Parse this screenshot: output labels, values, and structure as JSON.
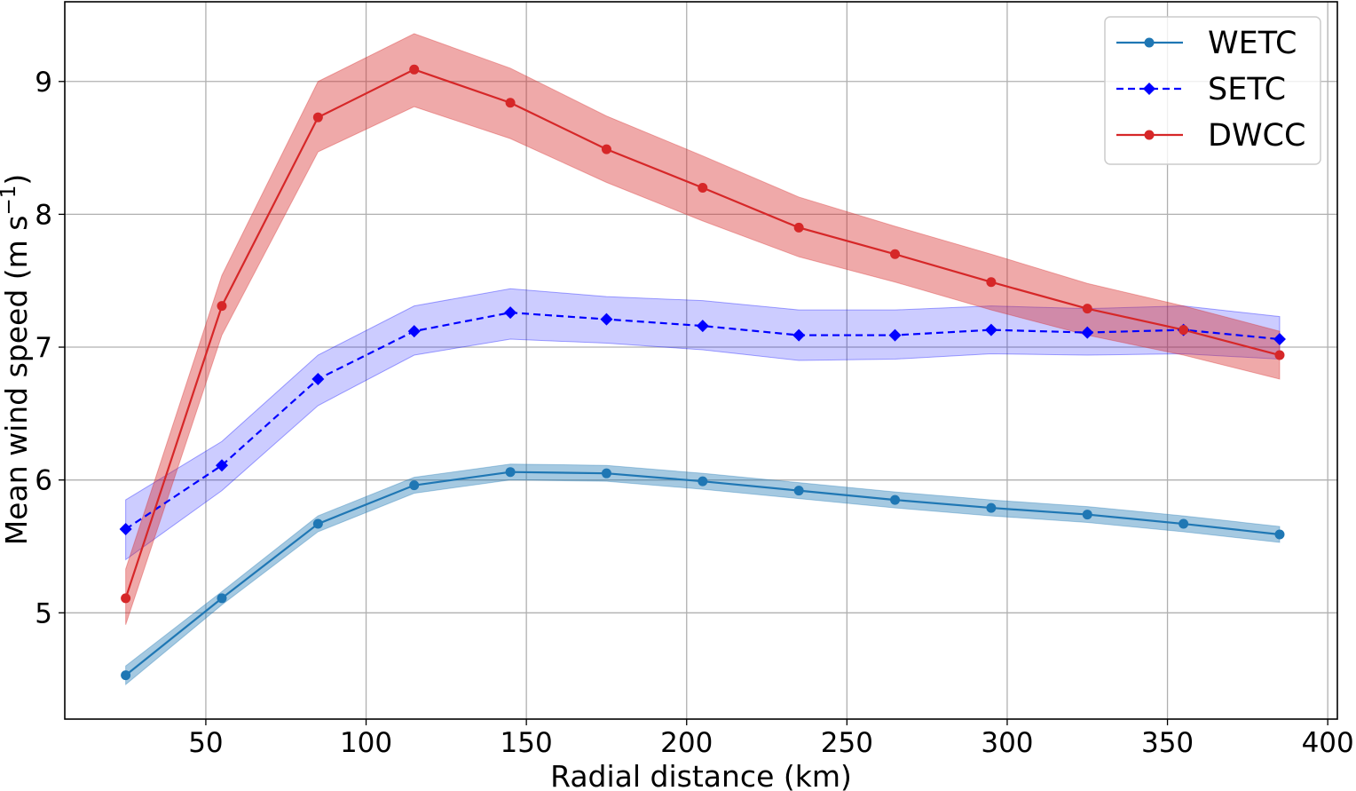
{
  "chart_data": {
    "type": "line",
    "title": "",
    "xlabel": "Radial distance (km)",
    "ylabel": "Mean wind speed (m s",
    "ylabel_sup": "−1",
    "ylabel_close": ")",
    "xlim": [
      6,
      403
    ],
    "ylim": [
      4.2,
      9.6
    ],
    "xticks": [
      50,
      100,
      150,
      200,
      250,
      300,
      350,
      400
    ],
    "xtick_labels": [
      "50",
      "100",
      "150",
      "200",
      "250",
      "300",
      "350",
      "400"
    ],
    "yticks": [
      5,
      6,
      7,
      8,
      9
    ],
    "ytick_labels": [
      "5",
      "6",
      "7",
      "8",
      "9"
    ],
    "grid": true,
    "legend_position": "top-right",
    "x": [
      25,
      55,
      85,
      115,
      145,
      175,
      205,
      235,
      265,
      295,
      325,
      355,
      385
    ],
    "series": [
      {
        "name": "WETC",
        "color": "#1f77b4",
        "band_color": "#1f77b4",
        "linestyle": "solid",
        "marker": "circle",
        "values": [
          4.53,
          5.11,
          5.67,
          5.96,
          6.06,
          6.05,
          5.99,
          5.92,
          5.85,
          5.79,
          5.74,
          5.67,
          5.59
        ],
        "upper": [
          4.6,
          5.16,
          5.73,
          6.02,
          6.12,
          6.11,
          6.05,
          5.98,
          5.91,
          5.85,
          5.8,
          5.73,
          5.65
        ],
        "lower": [
          4.46,
          5.06,
          5.61,
          5.9,
          6.0,
          5.99,
          5.93,
          5.86,
          5.79,
          5.73,
          5.68,
          5.61,
          5.53
        ]
      },
      {
        "name": "SETC",
        "color": "#0000ff",
        "band_color": "#0000ff",
        "linestyle": "dashed",
        "marker": "diamond",
        "values": [
          5.63,
          6.11,
          6.76,
          7.12,
          7.26,
          7.21,
          7.16,
          7.09,
          7.09,
          7.13,
          7.11,
          7.13,
          7.06
        ],
        "upper": [
          5.85,
          6.29,
          6.94,
          7.31,
          7.44,
          7.38,
          7.35,
          7.28,
          7.28,
          7.31,
          7.29,
          7.31,
          7.23
        ],
        "lower": [
          5.4,
          5.92,
          6.56,
          6.94,
          7.06,
          7.03,
          6.98,
          6.9,
          6.91,
          6.95,
          6.94,
          6.95,
          6.91
        ]
      },
      {
        "name": "DWCC",
        "color": "#d62728",
        "band_color": "#d62728",
        "linestyle": "solid",
        "marker": "circle",
        "values": [
          5.11,
          7.31,
          8.73,
          9.09,
          8.84,
          8.49,
          8.2,
          7.9,
          7.7,
          7.49,
          7.29,
          7.13,
          6.94
        ],
        "upper": [
          5.33,
          7.54,
          9.0,
          9.36,
          9.1,
          8.74,
          8.44,
          8.13,
          7.91,
          7.7,
          7.48,
          7.31,
          7.12
        ],
        "lower": [
          4.91,
          7.09,
          8.47,
          8.81,
          8.57,
          8.24,
          7.95,
          7.68,
          7.49,
          7.28,
          7.09,
          6.94,
          6.76
        ]
      }
    ]
  }
}
